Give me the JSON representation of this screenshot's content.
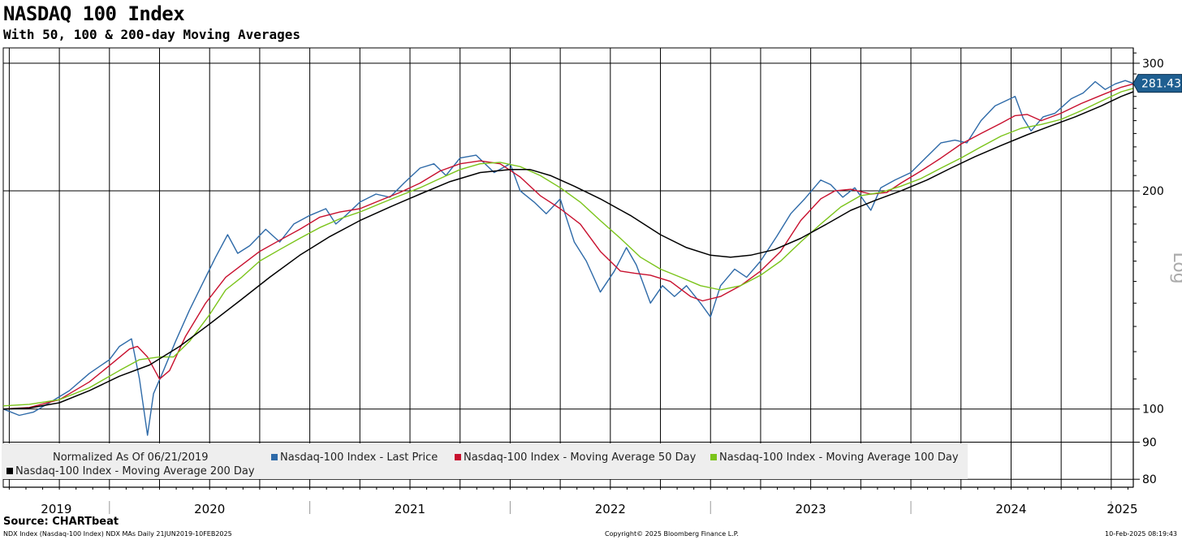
{
  "header": {
    "title": "NASDAQ 100 Index",
    "subtitle": "With 50, 100 & 200-day Moving Averages"
  },
  "footer": {
    "source": "Source: CHARTbeat",
    "left": "NDX Index (Nasdaq-100 Index) NDX MAs  Daily 21JUN2019-10FEB2025",
    "center": "Copyright© 2025 Bloomberg Finance L.P.",
    "right": "10-Feb-2025 08:19:43"
  },
  "legend": {
    "normalized": "Normalized As Of 06/21/2019",
    "items": [
      {
        "label": "Nasdaq-100 Index - Last Price",
        "color": "#2e6aa8"
      },
      {
        "label": "Nasdaq-100 Index - Moving Average 50 Day",
        "color": "#c8102e"
      },
      {
        "label": "Nasdaq-100 Index - Moving Average 100 Day",
        "color": "#7bc41a"
      },
      {
        "label": "Nasdaq-100 Index - Moving Average 200 Day",
        "color": "#000000"
      }
    ]
  },
  "colors": {
    "price": "#2e6aa8",
    "ma50": "#c8102e",
    "ma100": "#7bc41a",
    "ma200": "#000000",
    "last_badge": "#1f5f91"
  },
  "chart_data": {
    "type": "line",
    "title": "NASDAQ 100 Index",
    "subtitle": "With 50, 100 & 200-day Moving Averages",
    "y_scale": "log",
    "y_label": "Log",
    "ylim": [
      78,
      315
    ],
    "y_ticks": [
      80,
      90,
      100,
      200,
      300
    ],
    "x_range": [
      2019.47,
      2025.11
    ],
    "year_labels": [
      "2019",
      "2020",
      "2021",
      "2022",
      "2023",
      "2024",
      "2025"
    ],
    "last_value": "281.43",
    "series": [
      {
        "name": "Nasdaq-100 Index - Last Price",
        "color": "#2e6aa8",
        "points": [
          [
            2019.47,
            100
          ],
          [
            2019.55,
            98
          ],
          [
            2019.62,
            99
          ],
          [
            2019.7,
            102
          ],
          [
            2019.8,
            106
          ],
          [
            2019.9,
            112
          ],
          [
            2020.0,
            117
          ],
          [
            2020.05,
            122
          ],
          [
            2020.11,
            125
          ],
          [
            2020.15,
            110
          ],
          [
            2020.19,
            92
          ],
          [
            2020.22,
            105
          ],
          [
            2020.27,
            113
          ],
          [
            2020.33,
            124
          ],
          [
            2020.4,
            137
          ],
          [
            2020.47,
            150
          ],
          [
            2020.53,
            162
          ],
          [
            2020.59,
            174
          ],
          [
            2020.64,
            164
          ],
          [
            2020.7,
            168
          ],
          [
            2020.78,
            177
          ],
          [
            2020.85,
            170
          ],
          [
            2020.92,
            180
          ],
          [
            2021.0,
            185
          ],
          [
            2021.08,
            189
          ],
          [
            2021.13,
            180
          ],
          [
            2021.18,
            185
          ],
          [
            2021.25,
            193
          ],
          [
            2021.33,
            198
          ],
          [
            2021.4,
            196
          ],
          [
            2021.47,
            205
          ],
          [
            2021.55,
            215
          ],
          [
            2021.62,
            218
          ],
          [
            2021.68,
            210
          ],
          [
            2021.75,
            222
          ],
          [
            2021.83,
            224
          ],
          [
            2021.92,
            212
          ],
          [
            2022.0,
            218
          ],
          [
            2022.05,
            200
          ],
          [
            2022.12,
            193
          ],
          [
            2022.18,
            186
          ],
          [
            2022.25,
            195
          ],
          [
            2022.32,
            170
          ],
          [
            2022.38,
            160
          ],
          [
            2022.45,
            145
          ],
          [
            2022.52,
            155
          ],
          [
            2022.58,
            167
          ],
          [
            2022.63,
            158
          ],
          [
            2022.7,
            140
          ],
          [
            2022.76,
            148
          ],
          [
            2022.82,
            143
          ],
          [
            2022.88,
            148
          ],
          [
            2022.95,
            140
          ],
          [
            2023.0,
            134
          ],
          [
            2023.05,
            148
          ],
          [
            2023.12,
            156
          ],
          [
            2023.18,
            152
          ],
          [
            2023.25,
            160
          ],
          [
            2023.33,
            173
          ],
          [
            2023.4,
            186
          ],
          [
            2023.47,
            195
          ],
          [
            2023.55,
            207
          ],
          [
            2023.6,
            204
          ],
          [
            2023.66,
            196
          ],
          [
            2023.72,
            202
          ],
          [
            2023.8,
            188
          ],
          [
            2023.85,
            202
          ],
          [
            2023.92,
            207
          ],
          [
            2024.0,
            212
          ],
          [
            2024.08,
            223
          ],
          [
            2024.15,
            233
          ],
          [
            2024.22,
            235
          ],
          [
            2024.28,
            233
          ],
          [
            2024.35,
            250
          ],
          [
            2024.42,
            262
          ],
          [
            2024.52,
            270
          ],
          [
            2024.56,
            252
          ],
          [
            2024.6,
            242
          ],
          [
            2024.66,
            253
          ],
          [
            2024.72,
            256
          ],
          [
            2024.8,
            268
          ],
          [
            2024.86,
            273
          ],
          [
            2024.92,
            283
          ],
          [
            2024.97,
            276
          ],
          [
            2025.02,
            281
          ],
          [
            2025.07,
            284
          ],
          [
            2025.11,
            281.43
          ]
        ]
      },
      {
        "name": "Nasdaq-100 Index - Moving Average 50 Day",
        "color": "#c8102e",
        "points": [
          [
            2019.47,
            100
          ],
          [
            2019.6,
            100.5
          ],
          [
            2019.75,
            103
          ],
          [
            2019.9,
            109
          ],
          [
            2020.02,
            116
          ],
          [
            2020.1,
            121
          ],
          [
            2020.14,
            122
          ],
          [
            2020.19,
            118
          ],
          [
            2020.25,
            110
          ],
          [
            2020.3,
            113
          ],
          [
            2020.38,
            126
          ],
          [
            2020.48,
            140
          ],
          [
            2020.58,
            152
          ],
          [
            2020.66,
            158
          ],
          [
            2020.75,
            165
          ],
          [
            2020.85,
            171
          ],
          [
            2020.95,
            177
          ],
          [
            2021.05,
            184
          ],
          [
            2021.15,
            187
          ],
          [
            2021.25,
            189
          ],
          [
            2021.35,
            194
          ],
          [
            2021.45,
            199
          ],
          [
            2021.55,
            205
          ],
          [
            2021.65,
            213
          ],
          [
            2021.75,
            218
          ],
          [
            2021.85,
            220
          ],
          [
            2021.95,
            218
          ],
          [
            2022.05,
            209
          ],
          [
            2022.15,
            197
          ],
          [
            2022.25,
            189
          ],
          [
            2022.35,
            180
          ],
          [
            2022.45,
            165
          ],
          [
            2022.55,
            155
          ],
          [
            2022.62,
            154
          ],
          [
            2022.7,
            153
          ],
          [
            2022.8,
            150
          ],
          [
            2022.9,
            143
          ],
          [
            2022.96,
            141
          ],
          [
            2023.05,
            143
          ],
          [
            2023.15,
            148
          ],
          [
            2023.25,
            155
          ],
          [
            2023.35,
            165
          ],
          [
            2023.45,
            182
          ],
          [
            2023.55,
            195
          ],
          [
            2023.62,
            200
          ],
          [
            2023.7,
            201
          ],
          [
            2023.8,
            198
          ],
          [
            2023.88,
            199
          ],
          [
            2023.95,
            205
          ],
          [
            2024.05,
            213
          ],
          [
            2024.15,
            222
          ],
          [
            2024.25,
            232
          ],
          [
            2024.35,
            240
          ],
          [
            2024.45,
            248
          ],
          [
            2024.52,
            254
          ],
          [
            2024.58,
            255
          ],
          [
            2024.65,
            250
          ],
          [
            2024.75,
            256
          ],
          [
            2024.85,
            264
          ],
          [
            2024.95,
            271
          ],
          [
            2025.05,
            278
          ],
          [
            2025.11,
            281
          ]
        ]
      },
      {
        "name": "Nasdaq-100 Index - Moving Average 100 Day",
        "color": "#7bc41a",
        "points": [
          [
            2019.47,
            101
          ],
          [
            2019.6,
            101.5
          ],
          [
            2019.75,
            103
          ],
          [
            2019.9,
            107
          ],
          [
            2020.05,
            113
          ],
          [
            2020.15,
            117
          ],
          [
            2020.25,
            118
          ],
          [
            2020.32,
            118
          ],
          [
            2020.4,
            124
          ],
          [
            2020.5,
            135
          ],
          [
            2020.58,
            146
          ],
          [
            2020.66,
            152
          ],
          [
            2020.75,
            160
          ],
          [
            2020.85,
            166
          ],
          [
            2020.95,
            172
          ],
          [
            2021.05,
            178
          ],
          [
            2021.15,
            183
          ],
          [
            2021.25,
            187
          ],
          [
            2021.35,
            192
          ],
          [
            2021.45,
            197
          ],
          [
            2021.55,
            202
          ],
          [
            2021.65,
            208
          ],
          [
            2021.75,
            214
          ],
          [
            2021.85,
            218
          ],
          [
            2021.95,
            219
          ],
          [
            2022.05,
            216
          ],
          [
            2022.15,
            210
          ],
          [
            2022.25,
            202
          ],
          [
            2022.35,
            193
          ],
          [
            2022.45,
            182
          ],
          [
            2022.55,
            172
          ],
          [
            2022.65,
            162
          ],
          [
            2022.75,
            156
          ],
          [
            2022.85,
            152
          ],
          [
            2022.95,
            148
          ],
          [
            2023.05,
            146
          ],
          [
            2023.15,
            148
          ],
          [
            2023.25,
            153
          ],
          [
            2023.35,
            160
          ],
          [
            2023.45,
            170
          ],
          [
            2023.55,
            180
          ],
          [
            2023.65,
            190
          ],
          [
            2023.75,
            197
          ],
          [
            2023.85,
            199
          ],
          [
            2023.95,
            203
          ],
          [
            2024.05,
            208
          ],
          [
            2024.15,
            215
          ],
          [
            2024.25,
            222
          ],
          [
            2024.35,
            230
          ],
          [
            2024.45,
            238
          ],
          [
            2024.55,
            244
          ],
          [
            2024.65,
            247
          ],
          [
            2024.75,
            251
          ],
          [
            2024.85,
            258
          ],
          [
            2024.95,
            266
          ],
          [
            2025.05,
            274
          ],
          [
            2025.11,
            277
          ]
        ]
      },
      {
        "name": "Nasdaq-100 Index - Moving Average 200 Day",
        "color": "#000000",
        "points": [
          [
            2019.47,
            100
          ],
          [
            2019.6,
            100.3
          ],
          [
            2019.75,
            102
          ],
          [
            2019.9,
            106
          ],
          [
            2020.05,
            111
          ],
          [
            2020.2,
            115
          ],
          [
            2020.35,
            122
          ],
          [
            2020.5,
            131
          ],
          [
            2020.65,
            141
          ],
          [
            2020.8,
            152
          ],
          [
            2020.95,
            163
          ],
          [
            2021.1,
            173
          ],
          [
            2021.25,
            182
          ],
          [
            2021.4,
            190
          ],
          [
            2021.55,
            198
          ],
          [
            2021.7,
            206
          ],
          [
            2021.85,
            212
          ],
          [
            2022.0,
            214
          ],
          [
            2022.1,
            214
          ],
          [
            2022.2,
            210
          ],
          [
            2022.32,
            203
          ],
          [
            2022.45,
            195
          ],
          [
            2022.6,
            185
          ],
          [
            2022.75,
            174
          ],
          [
            2022.88,
            167
          ],
          [
            2023.0,
            163
          ],
          [
            2023.1,
            162
          ],
          [
            2023.2,
            163
          ],
          [
            2023.32,
            166
          ],
          [
            2023.45,
            172
          ],
          [
            2023.58,
            180
          ],
          [
            2023.7,
            188
          ],
          [
            2023.82,
            194
          ],
          [
            2023.95,
            200
          ],
          [
            2024.08,
            207
          ],
          [
            2024.2,
            215
          ],
          [
            2024.32,
            223
          ],
          [
            2024.45,
            231
          ],
          [
            2024.58,
            239
          ],
          [
            2024.7,
            246
          ],
          [
            2024.82,
            253
          ],
          [
            2024.95,
            262
          ],
          [
            2025.05,
            270
          ],
          [
            2025.11,
            274
          ]
        ]
      }
    ]
  }
}
